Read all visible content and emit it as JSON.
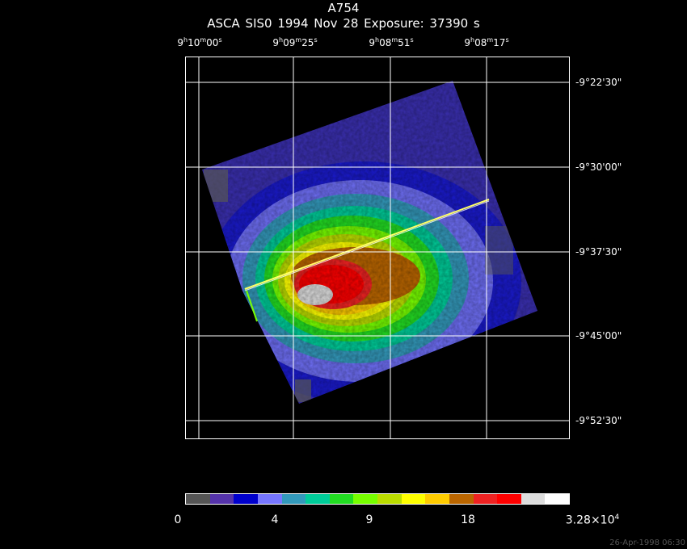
{
  "header": {
    "object": "A754",
    "instrument_line": "ASCA SIS0    1994 Nov 28    Exposure: 37390 s"
  },
  "axes": {
    "ra_ticks": [
      {
        "h": "9",
        "m": "10",
        "s": "00"
      },
      {
        "h": "9",
        "m": "09",
        "s": "25"
      },
      {
        "h": "9",
        "m": "08",
        "s": "51"
      },
      {
        "h": "9",
        "m": "08",
        "s": "17"
      }
    ],
    "dec_ticks": [
      "-9°22'30\"",
      "-9°30'00\"",
      "-9°37'30\"",
      "-9°45'00\"",
      "-9°52'30\""
    ]
  },
  "colorbar": {
    "colors": [
      "#555555",
      "#5533aa",
      "#0000cc",
      "#7777ff",
      "#3399bb",
      "#00cc99",
      "#22dd22",
      "#77ff00",
      "#bbdd00",
      "#ffff00",
      "#ffcc00",
      "#bb6600",
      "#ee2222",
      "#ff0000",
      "#dddddd",
      "#ffffff"
    ],
    "labels": [
      "0",
      "4",
      "9",
      "18"
    ],
    "max_label_base": "3.28×10",
    "max_label_exp": "4"
  },
  "footer": {
    "timestamp": "26-Apr-1998 06:30"
  }
}
